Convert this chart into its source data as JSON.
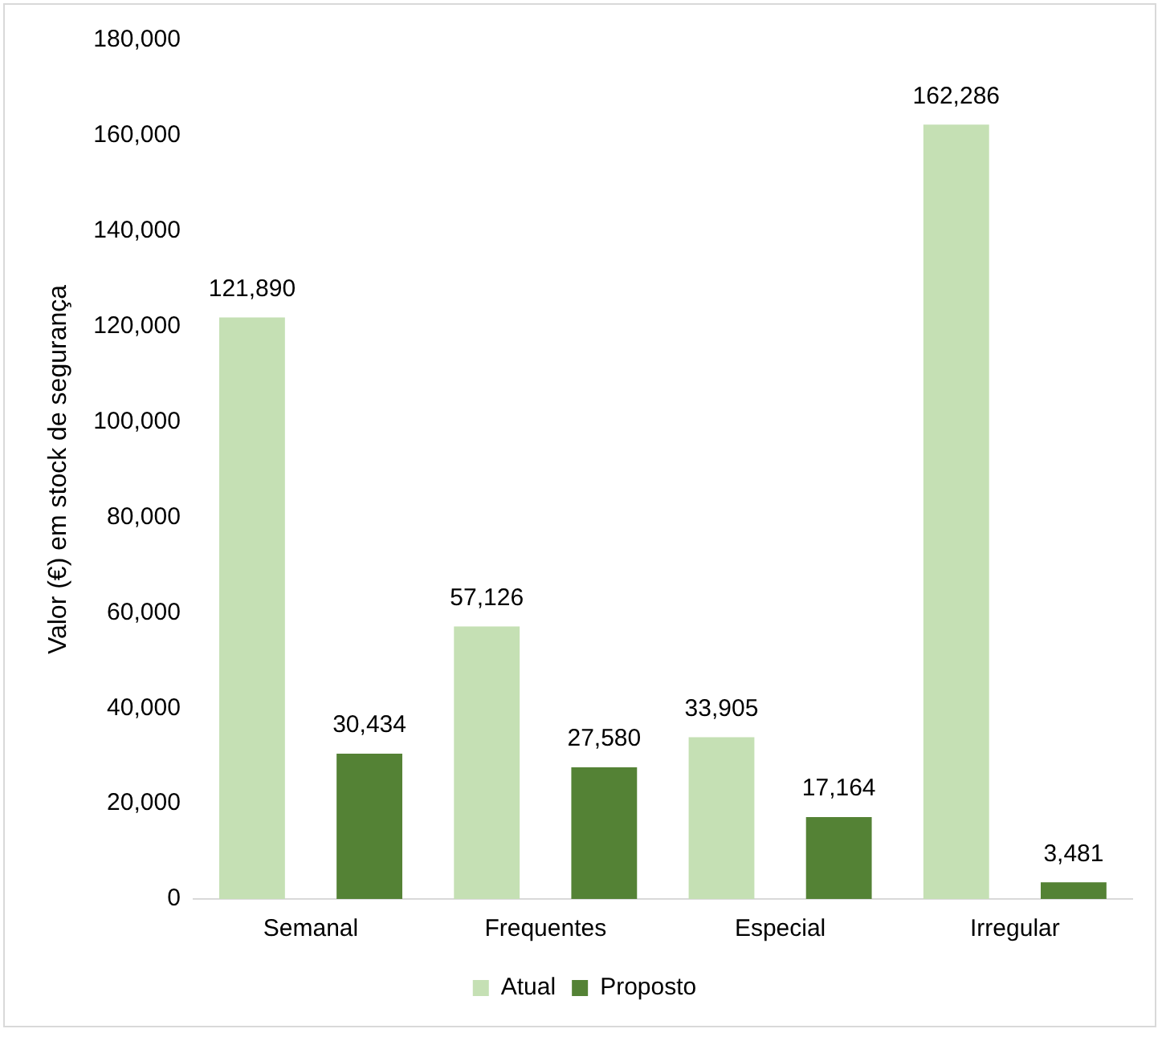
{
  "chart_data": {
    "type": "bar",
    "ylabel": "Valor (€) em stock de segurança",
    "categories": [
      "Semanal",
      "Frequentes",
      "Especial",
      "Irregular"
    ],
    "series": [
      {
        "name": "Atual",
        "color": "#c5e0b4",
        "values": [
          121890,
          57126,
          33905,
          162286
        ],
        "value_labels": [
          "121,890",
          "57,126",
          "33,905",
          "162,286"
        ]
      },
      {
        "name": "Proposto",
        "color": "#548235",
        "values": [
          30434,
          27580,
          17164,
          3481
        ],
        "value_labels": [
          "30,434",
          "27,580",
          "17,164",
          "3,481"
        ]
      }
    ],
    "ylim": [
      0,
      180000
    ],
    "yticks": [
      {
        "value": 0,
        "label": "0"
      },
      {
        "value": 20000,
        "label": "20,000"
      },
      {
        "value": 40000,
        "label": "40,000"
      },
      {
        "value": 60000,
        "label": "60,000"
      },
      {
        "value": 80000,
        "label": "80,000"
      },
      {
        "value": 100000,
        "label": "100,000"
      },
      {
        "value": 120000,
        "label": "120,000"
      },
      {
        "value": 140000,
        "label": "140,000"
      },
      {
        "value": 160000,
        "label": "160,000"
      },
      {
        "value": 180000,
        "label": "180,000"
      }
    ],
    "grid": false,
    "legend": "bottom"
  }
}
